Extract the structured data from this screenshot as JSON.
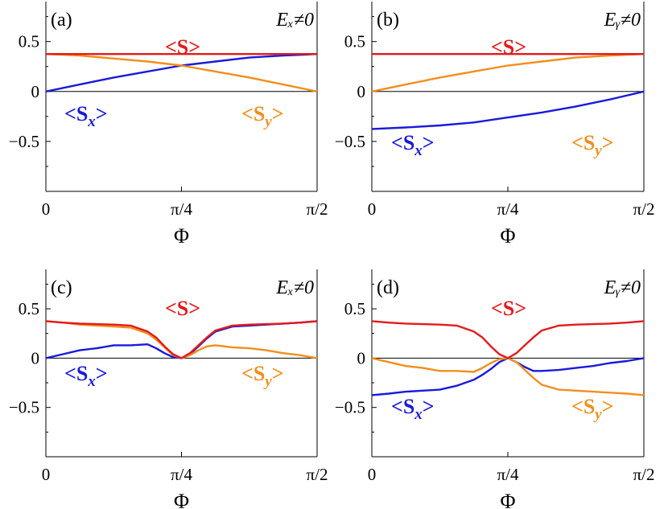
{
  "colors": {
    "S": "#e31a1c",
    "Sx": "#1a1adb",
    "Sy": "#f28e1c",
    "axis": "#000000"
  },
  "chart_data": [
    {
      "type": "line",
      "panel_label": "(a)",
      "condition": "Eₓ≠0",
      "xlabel": "Φ",
      "x_ticks": [
        "0",
        "π/4",
        "π/2"
      ],
      "xlim": [
        0,
        1.5708
      ],
      "ylim": [
        -1,
        0.9
      ],
      "y_ticks": [
        "0.5",
        "0",
        "−0.5"
      ],
      "y_tick_values": [
        0.5,
        0,
        -0.5
      ],
      "x": [
        0,
        0.1963,
        0.3927,
        0.589,
        0.7854,
        0.9817,
        1.1781,
        1.3744,
        1.5708
      ],
      "series": [
        {
          "name": "<S>",
          "label": "<S>",
          "color_key": "S",
          "values": [
            0.375,
            0.375,
            0.375,
            0.375,
            0.375,
            0.375,
            0.375,
            0.375,
            0.375
          ]
        },
        {
          "name": "<Sx>",
          "label_main": "<S",
          "label_sub": "x",
          "label_end": ">",
          "color_key": "Sx",
          "values": [
            0,
            0.07,
            0.14,
            0.2,
            0.26,
            0.3,
            0.34,
            0.36,
            0.375
          ]
        },
        {
          "name": "<Sy>",
          "label_main": "<S",
          "label_sub": "y",
          "label_end": ">",
          "color_key": "Sy",
          "values": [
            0.375,
            0.36,
            0.33,
            0.3,
            0.26,
            0.2,
            0.14,
            0.07,
            0
          ]
        }
      ]
    },
    {
      "type": "line",
      "panel_label": "(b)",
      "condition": "Eᵧ≠0",
      "xlabel": "Φ",
      "x_ticks": [
        "0",
        "π/4",
        "π/2"
      ],
      "xlim": [
        0,
        1.5708
      ],
      "ylim": [
        -1,
        0.9
      ],
      "y_ticks": [
        "0.5",
        "0",
        "−0.5"
      ],
      "y_tick_values": [
        0.5,
        0,
        -0.5
      ],
      "x": [
        0,
        0.1963,
        0.3927,
        0.589,
        0.7854,
        0.9817,
        1.1781,
        1.3744,
        1.5708
      ],
      "series": [
        {
          "name": "<S>",
          "label": "<S>",
          "color_key": "S",
          "values": [
            0.375,
            0.375,
            0.375,
            0.375,
            0.375,
            0.375,
            0.375,
            0.375,
            0.375
          ]
        },
        {
          "name": "<Sx>",
          "label_main": "<S",
          "label_sub": "x",
          "label_end": ">",
          "color_key": "Sx",
          "values": [
            -0.375,
            -0.36,
            -0.34,
            -0.31,
            -0.26,
            -0.21,
            -0.15,
            -0.08,
            0
          ]
        },
        {
          "name": "<Sy>",
          "label_main": "<S",
          "label_sub": "y",
          "label_end": ">",
          "color_key": "Sy",
          "values": [
            0,
            0.07,
            0.14,
            0.2,
            0.26,
            0.3,
            0.34,
            0.36,
            0.375
          ]
        }
      ]
    },
    {
      "type": "line",
      "panel_label": "(c)",
      "condition": "Eₓ≠0",
      "xlabel": "Φ",
      "x_ticks": [
        "0",
        "π/4",
        "π/2"
      ],
      "xlim": [
        0,
        1.5708
      ],
      "ylim": [
        -1,
        0.9
      ],
      "y_ticks": [
        "0.5",
        "0",
        "−0.5"
      ],
      "y_tick_values": [
        0.5,
        0,
        -0.5
      ],
      "x": [
        0,
        0.0982,
        0.1963,
        0.2945,
        0.3927,
        0.4909,
        0.589,
        0.6381,
        0.6872,
        0.7363,
        0.7854,
        0.8345,
        0.8836,
        0.9327,
        0.9817,
        1.0799,
        1.1781,
        1.2763,
        1.3744,
        1.4726,
        1.5708
      ],
      "series": [
        {
          "name": "<S>",
          "label": "<S>",
          "color_key": "S",
          "values": [
            0.375,
            0.36,
            0.35,
            0.345,
            0.34,
            0.33,
            0.27,
            0.21,
            0.12,
            0.04,
            0,
            0.05,
            0.13,
            0.21,
            0.28,
            0.33,
            0.34,
            0.345,
            0.35,
            0.36,
            0.375
          ]
        },
        {
          "name": "<Sx>",
          "label_main": "<S",
          "label_sub": "x",
          "label_end": ">",
          "color_key": "Sx",
          "values": [
            0,
            0.04,
            0.08,
            0.1,
            0.13,
            0.13,
            0.14,
            0.1,
            0.05,
            0.01,
            0,
            0.04,
            0.12,
            0.2,
            0.27,
            0.32,
            0.33,
            0.34,
            0.35,
            0.36,
            0.375
          ]
        },
        {
          "name": "<Sy>",
          "label_main": "<S",
          "label_sub": "y",
          "label_end": ">",
          "color_key": "Sy",
          "values": [
            0.375,
            0.36,
            0.34,
            0.33,
            0.32,
            0.31,
            0.25,
            0.19,
            0.11,
            0.03,
            0,
            0.03,
            0.08,
            0.12,
            0.13,
            0.11,
            0.1,
            0.08,
            0.05,
            0.03,
            0
          ]
        }
      ]
    },
    {
      "type": "line",
      "panel_label": "(d)",
      "condition": "Eᵧ≠0",
      "xlabel": "Φ",
      "x_ticks": [
        "0",
        "π/4",
        "π/2"
      ],
      "xlim": [
        0,
        1.5708
      ],
      "ylim": [
        -1,
        0.9
      ],
      "y_ticks": [
        "0.5",
        "0",
        "−0.5"
      ],
      "y_tick_values": [
        0.5,
        0,
        -0.5
      ],
      "x": [
        0,
        0.0982,
        0.1963,
        0.2945,
        0.3927,
        0.4909,
        0.589,
        0.6381,
        0.6872,
        0.7363,
        0.7854,
        0.8345,
        0.8836,
        0.9327,
        0.9817,
        1.0799,
        1.1781,
        1.2763,
        1.3744,
        1.4726,
        1.5708
      ],
      "series": [
        {
          "name": "<S>",
          "label": "<S>",
          "color_key": "S",
          "values": [
            0.375,
            0.36,
            0.35,
            0.345,
            0.34,
            0.33,
            0.27,
            0.21,
            0.12,
            0.04,
            0,
            0.05,
            0.13,
            0.21,
            0.28,
            0.33,
            0.34,
            0.345,
            0.35,
            0.36,
            0.375
          ]
        },
        {
          "name": "<Sx>",
          "label_main": "<S",
          "label_sub": "x",
          "label_end": ">",
          "color_key": "Sx",
          "values": [
            -0.375,
            -0.36,
            -0.34,
            -0.33,
            -0.32,
            -0.28,
            -0.22,
            -0.17,
            -0.11,
            -0.04,
            0,
            -0.04,
            -0.09,
            -0.13,
            -0.13,
            -0.12,
            -0.1,
            -0.08,
            -0.05,
            -0.03,
            0
          ]
        },
        {
          "name": "<Sy>",
          "label_main": "<S",
          "label_sub": "y",
          "label_end": ">",
          "color_key": "Sy",
          "values": [
            0,
            -0.04,
            -0.08,
            -0.1,
            -0.13,
            -0.13,
            -0.14,
            -0.1,
            -0.05,
            -0.01,
            0,
            -0.04,
            -0.12,
            -0.2,
            -0.27,
            -0.32,
            -0.33,
            -0.34,
            -0.35,
            -0.36,
            -0.375
          ]
        }
      ]
    }
  ]
}
